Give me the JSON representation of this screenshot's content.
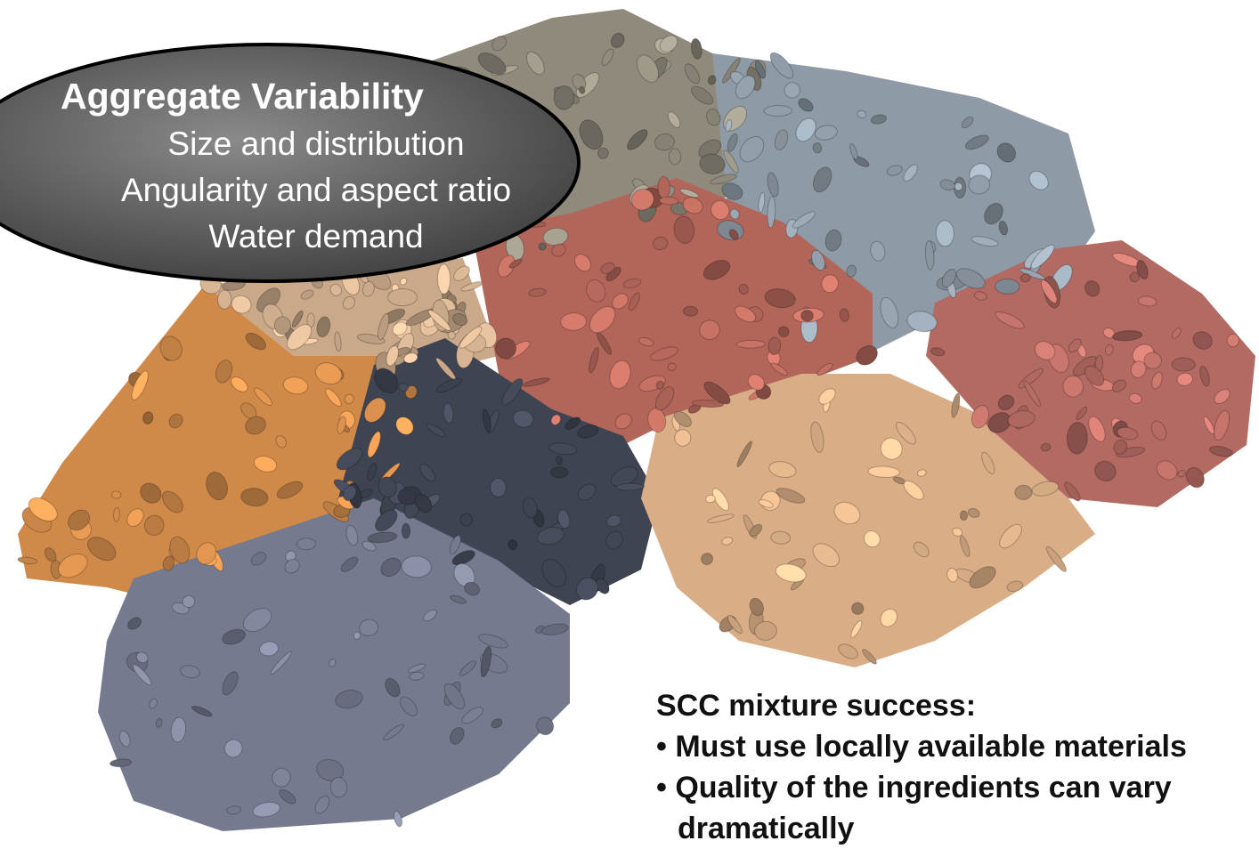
{
  "callout": {
    "title": "Aggregate Variability",
    "items": [
      "Size and distribution",
      "Angularity and aspect ratio",
      "Water demand"
    ]
  },
  "notes": {
    "heading": "SCC mixture success:",
    "bullets": [
      "• Must use locally available materials",
      "• Quality of the ingredients can vary dramatically"
    ]
  }
}
